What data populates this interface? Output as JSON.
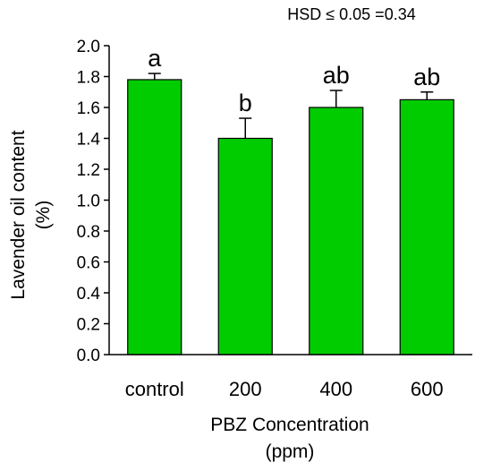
{
  "chart_data": {
    "type": "bar",
    "categories": [
      "control",
      "200",
      "400",
      "600"
    ],
    "values": [
      1.78,
      1.4,
      1.6,
      1.65
    ],
    "error_plus": [
      0.04,
      0.13,
      0.11,
      0.05
    ],
    "significance_letters": [
      "a",
      "b",
      "ab",
      "ab"
    ],
    "annotation": "HSD ≤ 0.05 =0.34",
    "xlabel_lines": [
      "PBZ Concentration",
      "(ppm)"
    ],
    "ylabel_lines": [
      "Lavender oil content",
      "(%)"
    ],
    "ylim": [
      0,
      2.0
    ],
    "yticks": [
      "0.0",
      "0.2",
      "0.4",
      "0.6",
      "0.8",
      "1.0",
      "1.2",
      "1.4",
      "1.6",
      "1.8",
      "2.0"
    ],
    "grid": false,
    "legend": "none",
    "colors": {
      "bar_fill": "#00cc00",
      "bar_stroke": "#000000",
      "axis": "#000000"
    }
  }
}
